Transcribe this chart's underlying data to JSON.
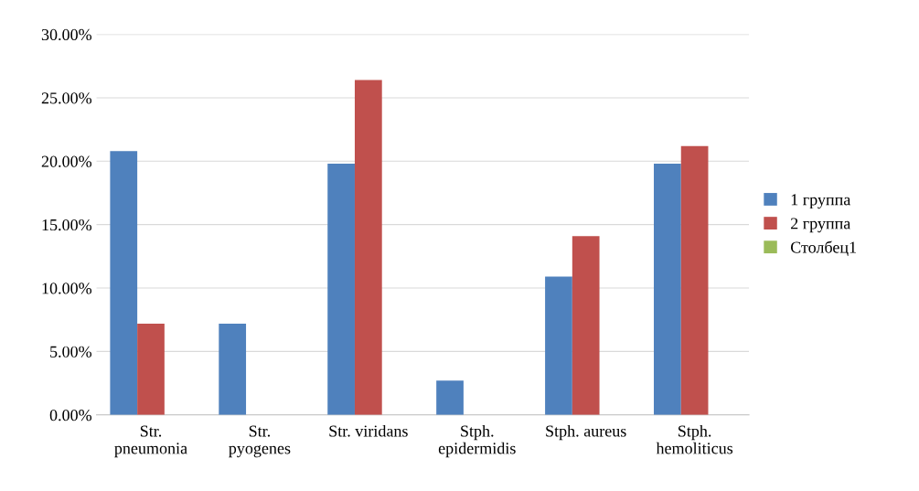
{
  "chart_data": {
    "type": "bar",
    "categories": [
      "Str.\npneumonia",
      "Str.\npyogenes",
      "Str. viridans",
      "Stph.\nepidermidis",
      "Stph. aureus",
      "Stph.\nhemoliticus"
    ],
    "series": [
      {
        "name": "1 группа",
        "color": "#4f81bd",
        "values": [
          20.8,
          7.2,
          19.8,
          2.7,
          10.9,
          19.8
        ]
      },
      {
        "name": "2 группа",
        "color": "#c0504d",
        "values": [
          7.2,
          null,
          26.4,
          null,
          14.1,
          21.2
        ]
      },
      {
        "name": "Столбец1",
        "color": "#9bbb59",
        "values": [
          null,
          null,
          null,
          null,
          null,
          null
        ]
      }
    ],
    "ylim": [
      0,
      30
    ],
    "yticks": [
      {
        "value": 0,
        "label": "0.00%"
      },
      {
        "value": 5,
        "label": "5.00%"
      },
      {
        "value": 10,
        "label": "10.00%"
      },
      {
        "value": 15,
        "label": "15.00%"
      },
      {
        "value": 20,
        "label": "20.00%"
      },
      {
        "value": 25,
        "label": "25.00%"
      },
      {
        "value": 30,
        "label": "30.00%"
      }
    ],
    "grid": "y",
    "legend": "right"
  }
}
